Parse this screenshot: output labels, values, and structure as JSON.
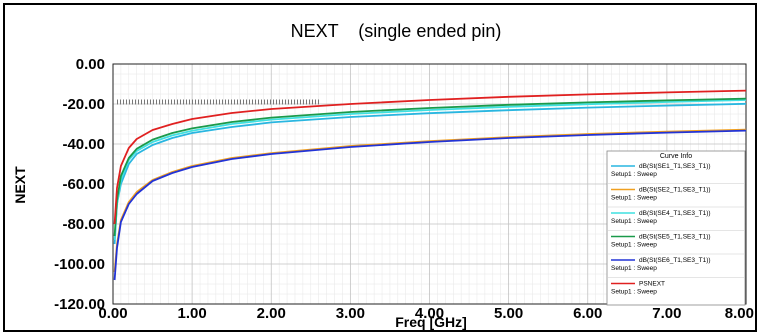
{
  "chart_data": {
    "type": "line",
    "title": "NEXT    (single ended pin)",
    "xlabel": "Freq [GHz]",
    "ylabel": "NEXT",
    "xlim": [
      0,
      8
    ],
    "ylim": [
      -120,
      0
    ],
    "xticks": [
      "0.00",
      "1.00",
      "2.00",
      "3.00",
      "4.00",
      "5.00",
      "6.00",
      "7.00",
      "8.00"
    ],
    "yticks": [
      "0.00",
      "-20.00",
      "-40.00",
      "-60.00",
      "-80.00",
      "-100.00",
      "-120.00"
    ],
    "grid": true,
    "legend": {
      "title": "Curve Info",
      "placement": "bottom-right",
      "entries": [
        {
          "name": "dB(St(SE1_T1,SE3_T1))",
          "sub": "Setup1 : Sweep",
          "color": "#29b6e0"
        },
        {
          "name": "dB(St(SE2_T1,SE3_T1))",
          "sub": "Setup1 : Sweep",
          "color": "#f0a020"
        },
        {
          "name": "dB(St(SE4_T1,SE3_T1))",
          "sub": "Setup1 : Sweep",
          "color": "#3fe0e0"
        },
        {
          "name": "dB(St(SE5_T1,SE3_T1))",
          "sub": "Setup1 : Sweep",
          "color": "#1a9a4a"
        },
        {
          "name": "dB(St(SE6_T1,SE3_T1))",
          "sub": "Setup1 : Sweep",
          "color": "#2233d6"
        },
        {
          "name": "PSNEXT",
          "sub": "Setup1 : Sweep",
          "color": "#e02020"
        }
      ]
    },
    "series": [
      {
        "name": "dB(St(SE1_T1,SE3_T1))",
        "color": "#29b6e0",
        "x": [
          0.02,
          0.05,
          0.1,
          0.2,
          0.3,
          0.5,
          0.75,
          1,
          1.5,
          2,
          3,
          4,
          5,
          6,
          7,
          8
        ],
        "y": [
          -90,
          -70,
          -60,
          -50,
          -45,
          -40.5,
          -37,
          -34.5,
          -31.5,
          -29.2,
          -26.5,
          -24.6,
          -23.1,
          -21.8,
          -20.8,
          -19.9
        ]
      },
      {
        "name": "dB(St(SE2_T1,SE3_T1))",
        "color": "#f0a020",
        "x": [
          0.02,
          0.05,
          0.1,
          0.2,
          0.3,
          0.5,
          0.75,
          1,
          1.5,
          2,
          3,
          4,
          5,
          6,
          7,
          8
        ],
        "y": [
          -104,
          -90,
          -78,
          -69,
          -64,
          -58,
          -54,
          -51,
          -47,
          -44.6,
          -41,
          -38.6,
          -36.6,
          -35,
          -33.8,
          -32.8
        ]
      },
      {
        "name": "dB(St(SE4_T1,SE3_T1))",
        "color": "#3fe0e0",
        "x": [
          0.02,
          0.05,
          0.1,
          0.2,
          0.3,
          0.5,
          0.75,
          1,
          1.5,
          2,
          3,
          4,
          5,
          6,
          7,
          8
        ],
        "y": [
          -88,
          -70,
          -58,
          -48,
          -43.5,
          -39,
          -35.7,
          -33.4,
          -30,
          -27.8,
          -25,
          -23,
          -21.4,
          -20.1,
          -19,
          -18
        ]
      },
      {
        "name": "dB(St(SE5_T1,SE3_T1))",
        "color": "#1a9a4a",
        "x": [
          0.02,
          0.05,
          0.1,
          0.2,
          0.3,
          0.5,
          0.75,
          1,
          1.5,
          2,
          3,
          4,
          5,
          6,
          7,
          8
        ],
        "y": [
          -86,
          -68,
          -56,
          -47,
          -42.4,
          -37.8,
          -34.5,
          -32.2,
          -29,
          -26.8,
          -24,
          -22,
          -20.4,
          -19.2,
          -18.2,
          -17.3
        ]
      },
      {
        "name": "dB(St(SE6_T1,SE3_T1))",
        "color": "#2233d6",
        "x": [
          0.02,
          0.05,
          0.1,
          0.2,
          0.3,
          0.5,
          0.75,
          1,
          1.5,
          2,
          3,
          4,
          5,
          6,
          7,
          8
        ],
        "y": [
          -108,
          -92,
          -79,
          -70,
          -65,
          -58.5,
          -54.5,
          -51.5,
          -47.5,
          -45,
          -41.5,
          -39,
          -37,
          -35.5,
          -34.3,
          -33.3
        ]
      },
      {
        "name": "PSNEXT",
        "color": "#e02020",
        "x": [
          0.02,
          0.05,
          0.1,
          0.2,
          0.3,
          0.5,
          0.75,
          1,
          1.5,
          2,
          3,
          4,
          5,
          6,
          7,
          8
        ],
        "y": [
          -80,
          -62,
          -51,
          -42,
          -37.5,
          -33,
          -30,
          -27.5,
          -24.5,
          -22.5,
          -20,
          -18,
          -16.4,
          -15.2,
          -14.2,
          -13.3
        ]
      }
    ],
    "limit_marker": {
      "x": [
        0,
        2.62
      ],
      "y": -19
    }
  }
}
